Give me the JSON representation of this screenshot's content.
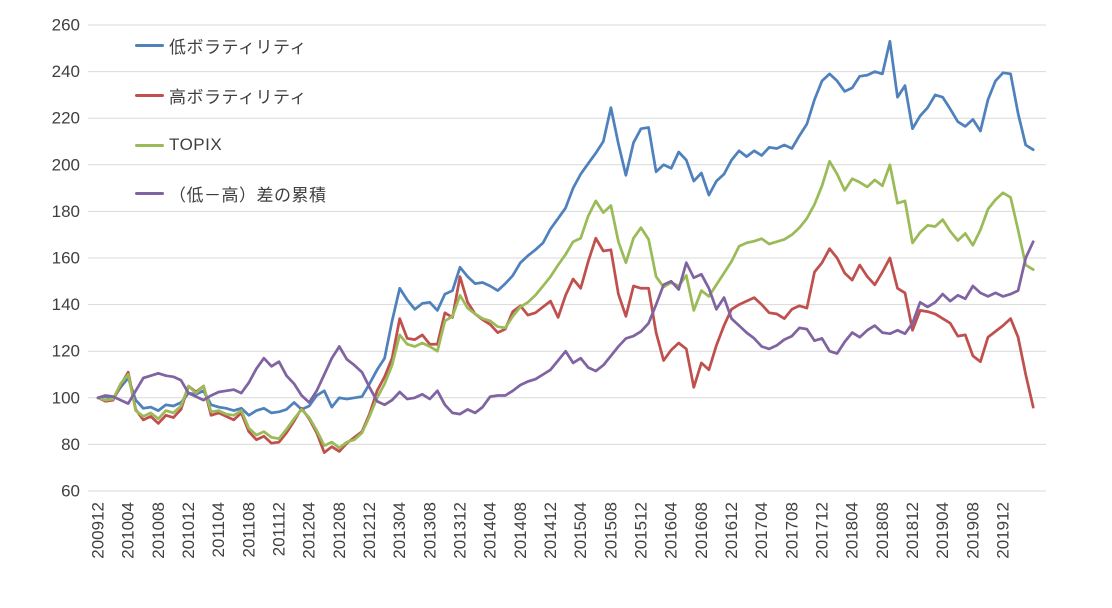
{
  "chart_data": {
    "type": "line",
    "title": "",
    "x_start": "200912",
    "x_frequency": "monthly",
    "x_tick_step_months": 4,
    "x_tick_labels": [
      "200912",
      "201004",
      "201008",
      "201012",
      "201104",
      "201108",
      "201112",
      "201204",
      "201208",
      "201212",
      "201304",
      "201308",
      "201312",
      "201404",
      "201408",
      "201412",
      "201504",
      "201508",
      "201512",
      "201604",
      "201608",
      "201612",
      "201704",
      "201708",
      "201712",
      "201804",
      "201808",
      "201812",
      "201904",
      "201908",
      "201912"
    ],
    "ylim": [
      60,
      260
    ],
    "y_ticks": [
      60,
      80,
      100,
      120,
      140,
      160,
      180,
      200,
      220,
      240,
      260
    ],
    "grid": "horizontal-only",
    "legend_position": "top-left-inside",
    "series": [
      {
        "name": "低ボラティリティ",
        "color": "#4F81BD",
        "values": [
          100,
          100.5,
          99.5,
          104.5,
          108.5,
          99,
          95.5,
          96,
          94.5,
          97,
          96.5,
          98,
          102,
          101.5,
          103,
          97,
          96,
          95.5,
          94.5,
          95.5,
          92.5,
          94.5,
          95.5,
          93.5,
          94,
          95,
          98,
          95,
          96.5,
          101,
          103,
          96,
          100,
          99.5,
          100,
          100.5,
          106,
          112,
          117,
          133,
          147,
          142,
          138,
          140.5,
          141,
          137.5,
          144.5,
          146,
          156,
          152,
          149,
          149.5,
          148,
          146,
          149,
          152.5,
          158,
          161,
          163.5,
          166.5,
          172.5,
          177,
          181.5,
          190,
          196,
          200.5,
          205,
          210,
          224.5,
          209,
          195.5,
          209.5,
          215.5,
          216,
          197,
          200,
          198.5,
          205.5,
          202,
          193,
          196.5,
          187,
          193,
          196,
          202,
          206,
          203.5,
          206,
          204,
          207.5,
          207,
          208.5,
          207,
          212.5,
          217.5,
          228,
          236,
          239,
          236,
          231.5,
          233,
          238,
          238.5,
          240,
          239,
          253,
          229,
          234,
          215.5,
          221,
          224.5,
          230,
          229,
          224,
          218.5,
          216.5,
          219.5,
          214.5,
          228,
          236,
          239.5,
          239,
          222,
          208.5,
          206.5
        ]
      },
      {
        "name": "高ボラティリティ",
        "color": "#C0504D",
        "values": [
          100,
          98.5,
          99,
          105.5,
          111,
          95,
          90.5,
          92,
          89,
          92.5,
          91.5,
          95,
          105,
          102.5,
          105,
          92.5,
          93.5,
          92,
          90.5,
          93.5,
          85.5,
          82,
          83.5,
          80.5,
          81,
          85,
          90,
          95.5,
          91,
          85,
          76.5,
          79,
          77,
          80.5,
          83,
          85.5,
          93,
          103,
          109,
          117,
          134,
          125.5,
          125,
          127,
          123,
          123,
          136.5,
          134.5,
          152,
          141,
          136,
          133.5,
          131.5,
          128,
          129.5,
          137,
          139.5,
          135.5,
          136.5,
          139,
          141.5,
          134.5,
          144,
          151,
          147,
          158.5,
          168.5,
          163,
          163.5,
          144.5,
          135,
          148,
          147,
          147,
          128,
          116,
          120.5,
          123.5,
          121,
          104.5,
          115,
          112,
          122.5,
          131,
          138,
          140,
          141.5,
          143,
          140,
          136.5,
          136,
          134,
          138,
          139.5,
          138.5,
          154,
          158,
          164,
          160,
          153.5,
          150.5,
          157,
          152,
          148.5,
          154,
          160,
          147,
          145,
          129,
          137.5,
          137,
          136,
          134,
          132,
          126.5,
          127,
          118,
          115.5,
          126,
          128.5,
          131,
          134,
          126,
          110,
          96
        ]
      },
      {
        "name": "TOPIX",
        "color": "#9BBB59",
        "values": [
          100,
          99,
          99.5,
          106,
          110,
          94.5,
          92,
          93.5,
          91,
          94.5,
          93.5,
          96.5,
          105,
          102,
          105,
          94,
          94.5,
          93,
          92.5,
          94.5,
          87,
          84,
          85.5,
          83,
          82.5,
          86.5,
          91,
          95,
          91.5,
          86,
          79.5,
          81,
          78.5,
          81,
          82,
          85,
          92,
          100,
          106,
          114,
          127,
          123,
          122,
          123.5,
          122,
          120,
          133,
          135,
          144,
          138.5,
          136,
          134,
          133,
          130.5,
          130,
          135,
          139,
          141,
          144,
          148,
          152,
          157,
          161.5,
          167,
          168.5,
          178,
          184.5,
          179.5,
          182.5,
          167,
          158,
          168.5,
          173,
          168,
          152,
          147.5,
          149.5,
          148,
          152.5,
          137.5,
          146,
          143.5,
          148.5,
          153.5,
          158.5,
          165,
          166.5,
          167.2,
          168.3,
          166,
          167,
          168,
          170,
          173,
          177,
          183,
          191,
          201.5,
          196,
          189,
          194,
          192.5,
          190.5,
          193.5,
          191,
          200,
          183.5,
          184.5,
          166.5,
          171,
          174,
          173.5,
          176.5,
          171.5,
          167.5,
          170.5,
          165.5,
          172,
          181,
          185,
          188,
          186,
          172,
          157,
          155
        ]
      },
      {
        "name": "（低－高）差の累積",
        "color": "#8064A2",
        "values": [
          100,
          101,
          100.5,
          99,
          97.5,
          103,
          108.5,
          109.5,
          110.5,
          109.5,
          109,
          107.5,
          102,
          100.5,
          99,
          101,
          102.5,
          103,
          103.5,
          102,
          106.5,
          112.5,
          117,
          113.5,
          115.5,
          109.5,
          106,
          101,
          98,
          103,
          110,
          117,
          122,
          116.5,
          114,
          111,
          104.5,
          98.5,
          97,
          99,
          102.5,
          99.5,
          100,
          101.5,
          99.5,
          103,
          97,
          93.5,
          93,
          95,
          93.5,
          96,
          100.5,
          101,
          101,
          103,
          105.5,
          107,
          108,
          110,
          112,
          116,
          120,
          115,
          117,
          113,
          111.5,
          114,
          118,
          122,
          125.5,
          126.5,
          128.5,
          132,
          140,
          148.5,
          150,
          146.5,
          158,
          151.5,
          153,
          147,
          138,
          143,
          134,
          131,
          128,
          125.5,
          122,
          121,
          122.5,
          125,
          126.5,
          130,
          129.5,
          124.5,
          125.5,
          120,
          119,
          124,
          128,
          126,
          129,
          131,
          128,
          127.5,
          129,
          127.5,
          132,
          141,
          139,
          141,
          144.5,
          141.5,
          144,
          142.5,
          148,
          145,
          143.5,
          145,
          143.5,
          144.5,
          146,
          160,
          167
        ]
      }
    ]
  },
  "colors": {
    "background": "#FFFFFF",
    "gridline": "#D9D9D9",
    "tick_text": "#3F3F3F"
  }
}
